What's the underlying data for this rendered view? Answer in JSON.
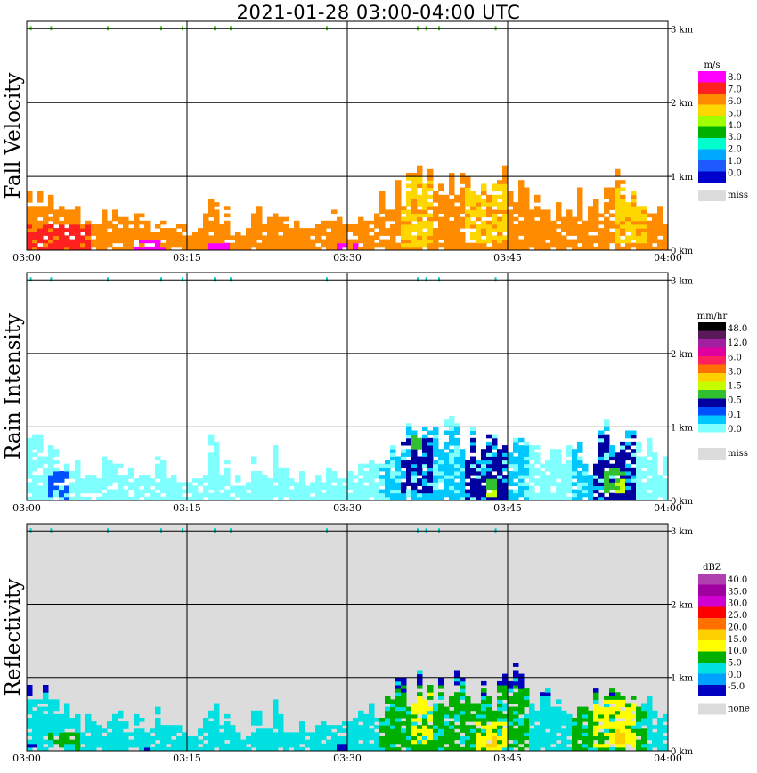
{
  "title": "2021-01-28   03:00-04:00 UTC",
  "chart_data": [
    {
      "type": "heatmap",
      "ylabel": "Fall Velocity",
      "xlabel": "",
      "x_ticks": [
        "03:00",
        "03:15",
        "03:30",
        "03:45",
        "04:00"
      ],
      "y_ticks": [
        "0 km",
        "1 km",
        "2 km",
        "3 km"
      ],
      "xlim": [
        "03:00",
        "04:00"
      ],
      "ylim_km": [
        0,
        3.1
      ],
      "grid": true,
      "colorbar": {
        "unit": "m/s",
        "labels": [
          "8.0",
          "7.0",
          "6.0",
          "5.0",
          "4.0",
          "3.0",
          "2.0",
          "1.0",
          "0.0"
        ],
        "colors": [
          "#ff00ff",
          "#ff2020",
          "#ff8c00",
          "#ffd700",
          "#a0ff00",
          "#00b000",
          "#00ffcc",
          "#00a8ff",
          "#1e5aff",
          "#0000cc"
        ],
        "missing_label": "miss",
        "missing_color": "#dcdcdc"
      },
      "echo_top_km": [
        0.9,
        0.95,
        0.85,
        0.7,
        0.6,
        0.5,
        0.4,
        0.6,
        0.55,
        0.45,
        0.5,
        0.4,
        0.6,
        0.45,
        0.35,
        0.3,
        0.5,
        0.85,
        0.6,
        0.35,
        0.3,
        0.6,
        0.5,
        0.7,
        0.45,
        0.4,
        0.3,
        0.4,
        0.55,
        0.5,
        0.45,
        0.6,
        0.75,
        0.8,
        1.0,
        1.05,
        1.15,
        1.1,
        1.12,
        1.1,
        1.05,
        1.0,
        0.95,
        1.0,
        1.1,
        1.15,
        1.05,
        1.0,
        0.8,
        0.7,
        0.75,
        0.8,
        0.6,
        0.9,
        1.15,
        1.15,
        1.1,
        1.0,
        0.85,
        0.6
      ],
      "default_class": 2,
      "patches": [
        {
          "t": [
            35,
            38
          ],
          "h": [
            0.05,
            1.0
          ],
          "class": 3
        },
        {
          "t": [
            41,
            45
          ],
          "h": [
            0.1,
            0.9
          ],
          "class": 3
        },
        {
          "t": [
            55,
            58
          ],
          "h": [
            0.1,
            0.9
          ],
          "class": 3
        },
        {
          "t": [
            0,
            6
          ],
          "h": [
            0.0,
            0.35
          ],
          "class": 1
        },
        {
          "t": [
            10,
            13
          ],
          "h": [
            0.0,
            0.15
          ],
          "class": 0
        },
        {
          "t": [
            17,
            19
          ],
          "h": [
            0.0,
            0.1
          ],
          "class": 0
        },
        {
          "t": [
            29,
            31
          ],
          "h": [
            0.0,
            0.1
          ],
          "class": 0
        }
      ],
      "top_markers": [
        0.3,
        2.2,
        7.5,
        12.5,
        14.5,
        17.5,
        19.0,
        28.0,
        36.5,
        37.3,
        38.5,
        43.8
      ],
      "marker_color": "#55cc22"
    },
    {
      "type": "heatmap",
      "ylabel": "Rain Intensity",
      "xlabel": "",
      "x_ticks": [
        "03:00",
        "03:15",
        "03:30",
        "03:45",
        "04:00"
      ],
      "y_ticks": [
        "0 km",
        "1 km",
        "2 km",
        "3 km"
      ],
      "xlim": [
        "03:00",
        "04:00"
      ],
      "ylim_km": [
        0,
        3.1
      ],
      "grid": true,
      "colorbar": {
        "unit": "mm/hr",
        "labels": [
          "48.0",
          "12.0",
          "6.0",
          "3.0",
          "1.5",
          "0.5",
          "0.1",
          "0.0"
        ],
        "colors": [
          "#000000",
          "#5a1a5a",
          "#a020a0",
          "#e000a0",
          "#ff2060",
          "#ff7000",
          "#ffd000",
          "#c8ff00",
          "#30c030",
          "#0000a0",
          "#0050ff",
          "#00c8ff",
          "#80ffff",
          "#ffffff"
        ],
        "missing_label": "miss",
        "missing_color": "#dcdcdc"
      },
      "echo_top_km": [
        0.9,
        0.95,
        0.85,
        0.7,
        0.6,
        0.5,
        0.4,
        0.6,
        0.55,
        0.45,
        0.5,
        0.4,
        0.6,
        0.45,
        0.35,
        0.3,
        0.5,
        0.85,
        0.6,
        0.35,
        0.3,
        0.6,
        0.5,
        0.7,
        0.45,
        0.4,
        0.3,
        0.4,
        0.55,
        0.5,
        0.45,
        0.6,
        0.75,
        0.8,
        1.0,
        1.05,
        1.15,
        1.1,
        1.12,
        1.1,
        1.05,
        1.0,
        0.95,
        1.0,
        1.1,
        1.15,
        1.05,
        1.0,
        0.8,
        0.7,
        0.75,
        0.8,
        0.6,
        0.9,
        1.15,
        1.15,
        1.1,
        1.0,
        0.85,
        0.6
      ],
      "default_class": 12,
      "patches": [
        {
          "t": [
            33,
            47
          ],
          "h": [
            0.0,
            1.0
          ],
          "class": 11
        },
        {
          "t": [
            51,
            57
          ],
          "h": [
            0.0,
            1.05
          ],
          "class": 11
        },
        {
          "t": [
            2,
            4
          ],
          "h": [
            0.0,
            0.4
          ],
          "class": 10
        },
        {
          "t": [
            35,
            38
          ],
          "h": [
            0.1,
            0.9
          ],
          "class": 9
        },
        {
          "t": [
            41,
            45
          ],
          "h": [
            0.0,
            0.9
          ],
          "class": 9
        },
        {
          "t": [
            53,
            57
          ],
          "h": [
            0.0,
            0.9
          ],
          "class": 9
        },
        {
          "t": [
            36,
            37
          ],
          "h": [
            0.7,
            0.9
          ],
          "class": 8
        },
        {
          "t": [
            43,
            44
          ],
          "h": [
            0.0,
            0.3
          ],
          "class": 8
        },
        {
          "t": [
            54,
            56
          ],
          "h": [
            0.1,
            0.45
          ],
          "class": 8
        },
        {
          "t": [
            43,
            44
          ],
          "h": [
            0.05,
            0.15
          ],
          "class": 7
        },
        {
          "t": [
            55,
            56
          ],
          "h": [
            0.1,
            0.3
          ],
          "class": 7
        }
      ],
      "top_markers": [
        0.3,
        2.2,
        7.5,
        12.5,
        14.5,
        17.5,
        19.0,
        28.0,
        36.5,
        37.3,
        38.5,
        43.8
      ],
      "marker_color": "#00cccc"
    },
    {
      "type": "heatmap",
      "ylabel": "Reflectivity",
      "xlabel": "",
      "x_ticks": [
        "03:00",
        "03:15",
        "03:30",
        "03:45",
        "04:00"
      ],
      "y_ticks": [
        "0 km",
        "1 km",
        "2 km",
        "3 km"
      ],
      "xlim": [
        "03:00",
        "04:00"
      ],
      "ylim_km": [
        0,
        3.1
      ],
      "grid": true,
      "background_color": "#dcdcdc",
      "colorbar": {
        "unit": "dBZ",
        "labels": [
          "40.0",
          "35.0",
          "30.0",
          "25.0",
          "20.0",
          "15.0",
          "10.0",
          "5.0",
          "0.0",
          "-5.0"
        ],
        "colors": [
          "#b040b0",
          "#a000a0",
          "#d000d0",
          "#ff0000",
          "#ff7000",
          "#ffd000",
          "#ffff00",
          "#00b000",
          "#00e0e0",
          "#00a0ff",
          "#0000c0"
        ],
        "missing_label": "none",
        "missing_color": "#dcdcdc"
      },
      "echo_top_km": [
        0.9,
        0.95,
        0.85,
        0.7,
        0.6,
        0.5,
        0.4,
        0.6,
        0.55,
        0.45,
        0.5,
        0.4,
        0.6,
        0.45,
        0.35,
        0.3,
        0.5,
        0.85,
        0.6,
        0.35,
        0.3,
        0.6,
        0.5,
        0.7,
        0.45,
        0.4,
        0.3,
        0.4,
        0.55,
        0.5,
        0.45,
        0.6,
        0.75,
        0.8,
        1.0,
        1.05,
        1.15,
        1.1,
        1.12,
        1.1,
        1.05,
        1.0,
        0.95,
        1.0,
        1.1,
        1.15,
        1.05,
        1.0,
        0.8,
        0.7,
        0.75,
        0.8,
        0.6,
        0.9,
        1.15,
        1.15,
        1.1,
        1.0,
        0.85,
        0.6
      ],
      "default_class": 8,
      "patches": [
        {
          "t": [
            0,
            60
          ],
          "h": [
            0.75,
            1.2
          ],
          "class": 10
        },
        {
          "t": [
            33,
            47
          ],
          "h": [
            0.0,
            0.9
          ],
          "class": 7
        },
        {
          "t": [
            51,
            58
          ],
          "h": [
            0.0,
            0.95
          ],
          "class": 7
        },
        {
          "t": [
            2,
            5
          ],
          "h": [
            0.0,
            0.25
          ],
          "class": 7
        },
        {
          "t": [
            36,
            38
          ],
          "h": [
            0.1,
            0.85
          ],
          "class": 6
        },
        {
          "t": [
            42,
            45
          ],
          "h": [
            0.0,
            0.4
          ],
          "class": 6
        },
        {
          "t": [
            53,
            57
          ],
          "h": [
            0.05,
            0.7
          ],
          "class": 6
        },
        {
          "t": [
            43,
            44
          ],
          "h": [
            0.05,
            0.2
          ],
          "class": 5
        },
        {
          "t": [
            55,
            56
          ],
          "h": [
            0.1,
            0.3
          ],
          "class": 5
        },
        {
          "t": [
            0,
            1
          ],
          "h": [
            0.0,
            0.08
          ],
          "class": 13
        },
        {
          "t": [
            11,
            12
          ],
          "h": [
            0.0,
            0.05
          ],
          "class": 13
        },
        {
          "t": [
            29,
            30
          ],
          "h": [
            0.0,
            0.08
          ],
          "class": 13
        }
      ],
      "top_markers": [
        0.3,
        2.2,
        7.5,
        12.5,
        14.5,
        17.5,
        19.0,
        28.0,
        36.5,
        37.3,
        38.5,
        43.8
      ],
      "marker_color": "#00cccc"
    }
  ]
}
